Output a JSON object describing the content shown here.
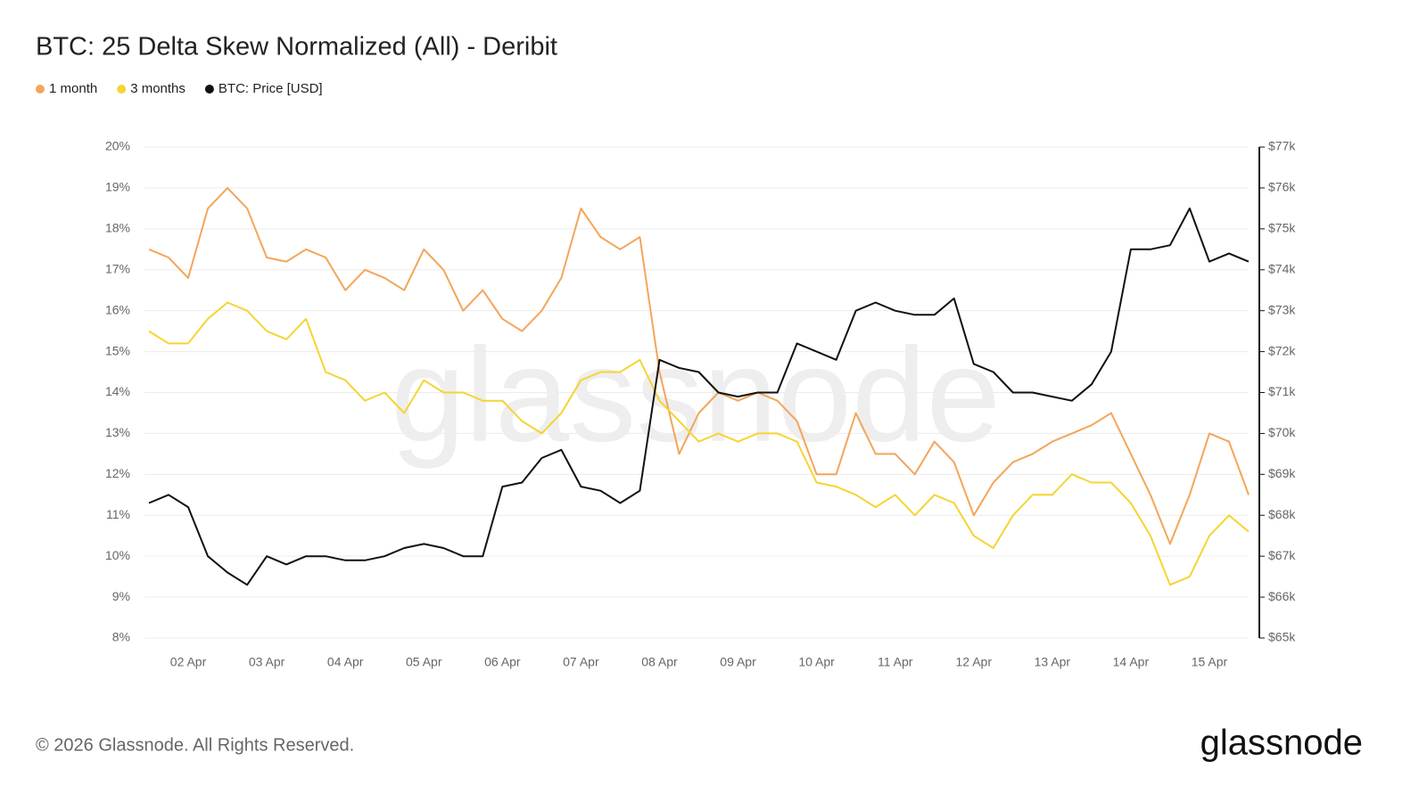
{
  "chart_data": {
    "type": "line",
    "title": "BTC: 25 Delta Skew Normalized (All) - Deribit",
    "watermark": "glassnode",
    "footer": "© 2026 Glassnode. All Rights Reserved.",
    "brand": "glassnode",
    "grid": true,
    "categories": [
      null,
      null,
      "02 Apr",
      null,
      null,
      null,
      "03 Apr",
      null,
      null,
      null,
      "04 Apr",
      null,
      null,
      null,
      "05 Apr",
      null,
      null,
      null,
      "06 Apr",
      null,
      null,
      null,
      "07 Apr",
      null,
      null,
      null,
      "08 Apr",
      null,
      null,
      null,
      "09 Apr",
      null,
      null,
      null,
      "10 Apr",
      null,
      null,
      null,
      "11 Apr",
      null,
      null,
      null,
      "12 Apr",
      null,
      null,
      null,
      "13 Apr",
      null,
      null,
      null,
      "14 Apr",
      null,
      null,
      null,
      "15 Apr",
      null,
      null
    ],
    "ylim": [
      8,
      20
    ],
    "yticks": [
      {
        "value": 8,
        "label": "8%"
      },
      {
        "value": 9,
        "label": "9%"
      },
      {
        "value": 10,
        "label": "10%"
      },
      {
        "value": 11,
        "label": "11%"
      },
      {
        "value": 12,
        "label": "12%"
      },
      {
        "value": 13,
        "label": "13%"
      },
      {
        "value": 14,
        "label": "14%"
      },
      {
        "value": 15,
        "label": "15%"
      },
      {
        "value": 16,
        "label": "16%"
      },
      {
        "value": 17,
        "label": "17%"
      },
      {
        "value": 18,
        "label": "18%"
      },
      {
        "value": 19,
        "label": "19%"
      },
      {
        "value": 20,
        "label": "20%"
      }
    ],
    "y2lim": [
      65000,
      77000
    ],
    "y2ticks": [
      {
        "value": 65000,
        "label": "$65k"
      },
      {
        "value": 66000,
        "label": "$66k"
      },
      {
        "value": 67000,
        "label": "$67k"
      },
      {
        "value": 68000,
        "label": "$68k"
      },
      {
        "value": 69000,
        "label": "$69k"
      },
      {
        "value": 70000,
        "label": "$70k"
      },
      {
        "value": 71000,
        "label": "$71k"
      },
      {
        "value": 72000,
        "label": "$72k"
      },
      {
        "value": 73000,
        "label": "$73k"
      },
      {
        "value": 74000,
        "label": "$74k"
      },
      {
        "value": 75000,
        "label": "$75k"
      },
      {
        "value": 76000,
        "label": "$76k"
      },
      {
        "value": 77000,
        "label": "$77k"
      }
    ],
    "series": [
      {
        "name": "1 month",
        "color": "#f4a55a",
        "values": [
          17.5,
          17.3,
          16.8,
          18.5,
          19.0,
          18.5,
          17.3,
          17.2,
          17.5,
          17.3,
          16.5,
          17.0,
          16.8,
          16.5,
          17.5,
          17.0,
          16.0,
          16.5,
          15.8,
          15.5,
          16.0,
          16.8,
          18.5,
          17.8,
          17.5,
          17.8,
          14.5,
          12.5,
          13.5,
          14.0,
          13.8,
          14.0,
          13.8,
          13.3,
          12.0,
          12.0,
          13.5,
          12.5,
          12.5,
          12.0,
          12.8,
          12.3,
          11.0,
          11.8,
          12.3,
          12.5,
          12.8,
          13.0,
          13.2,
          13.5,
          12.5,
          11.5,
          10.3,
          11.5,
          13.0,
          12.8,
          11.5
        ]
      },
      {
        "name": "3 months",
        "color": "#f6d433",
        "values": [
          15.5,
          15.2,
          15.2,
          15.8,
          16.2,
          16.0,
          15.5,
          15.3,
          15.8,
          14.5,
          14.3,
          13.8,
          14.0,
          13.5,
          14.3,
          14.0,
          14.0,
          13.8,
          13.8,
          13.3,
          13.0,
          13.5,
          14.3,
          14.5,
          14.5,
          14.8,
          13.8,
          13.3,
          12.8,
          13.0,
          12.8,
          13.0,
          13.0,
          12.8,
          11.8,
          11.7,
          11.5,
          11.2,
          11.5,
          11.0,
          11.5,
          11.3,
          10.5,
          10.2,
          11.0,
          11.5,
          11.5,
          12.0,
          11.8,
          11.8,
          11.3,
          10.5,
          9.3,
          9.5,
          10.5,
          11.0,
          10.6
        ]
      },
      {
        "name": "BTC: Price [USD]",
        "color": "#111111",
        "axis": "y2",
        "values": [
          68300,
          68500,
          68200,
          67000,
          66600,
          66300,
          67000,
          66800,
          67000,
          67000,
          66900,
          66900,
          67000,
          67200,
          67300,
          67200,
          67000,
          67000,
          68700,
          68800,
          69400,
          69600,
          68700,
          68600,
          68300,
          68600,
          71800,
          71600,
          71500,
          71000,
          70900,
          71000,
          71000,
          72200,
          72000,
          71800,
          73000,
          73200,
          73000,
          72900,
          72900,
          73300,
          71700,
          71500,
          71000,
          71000,
          70900,
          70800,
          71200,
          72000,
          74500,
          74500,
          74600,
          75500,
          74200,
          74400,
          74200
        ]
      }
    ]
  }
}
